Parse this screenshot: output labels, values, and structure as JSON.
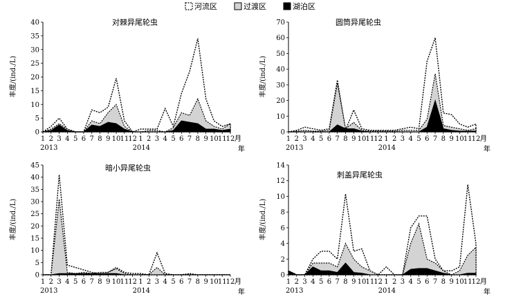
{
  "legend": {
    "river": "河流区",
    "transition": "过渡区",
    "lake": "湖泊区"
  },
  "colors": {
    "river": "#ffffff",
    "transition": "#d3d3d3",
    "lake": "#000000",
    "line": "#000000"
  },
  "x_axis": {
    "tick_labels": [
      "1",
      "2",
      "3",
      "4",
      "5",
      "6",
      "7",
      "8",
      "9",
      "10",
      "11",
      "12",
      "1",
      "2",
      "3",
      "4",
      "5",
      "6",
      "7",
      "8",
      "9",
      "10",
      "11",
      "12"
    ],
    "year_2013": "2013",
    "year_2014": "2014",
    "unit_month": "月",
    "unit_year": "年"
  },
  "chart_data": [
    {
      "type": "area",
      "title": "对棘异尾轮虫",
      "ylabel": "丰度/(ind./L)",
      "ylim": [
        0,
        40
      ],
      "yticks": [
        "0",
        "5",
        "10",
        "15",
        "20",
        "25",
        "30",
        "35",
        "40"
      ],
      "series": [
        {
          "name": "河流区",
          "values": [
            0,
            2,
            5,
            1,
            0,
            0,
            8,
            7,
            9,
            19.5,
            4,
            0,
            1,
            1,
            1,
            8.5,
            2,
            14,
            22,
            34,
            12,
            4,
            2,
            3
          ]
        },
        {
          "name": "过渡区",
          "values": [
            0,
            1,
            3,
            1,
            0,
            0,
            4,
            3,
            7,
            10,
            2,
            0,
            0,
            0.5,
            0.5,
            0,
            1.5,
            7,
            6,
            12,
            4,
            2,
            1,
            3
          ]
        },
        {
          "name": "湖泊区",
          "values": [
            0,
            0.5,
            2.5,
            0.5,
            0,
            0,
            2.5,
            2,
            3.5,
            3,
            1,
            0,
            0,
            0,
            0,
            0,
            0.5,
            4,
            3.5,
            3,
            1,
            1,
            0.5,
            1
          ]
        }
      ]
    },
    {
      "type": "area",
      "title": "圆筒异尾轮虫",
      "ylabel": "丰度/(ind./L)",
      "ylim": [
        0,
        70
      ],
      "yticks": [
        "0",
        "10",
        "20",
        "30",
        "40",
        "50",
        "60",
        "70"
      ],
      "series": [
        {
          "name": "河流区",
          "values": [
            0,
            1,
            3,
            2,
            1,
            2,
            33,
            1,
            14,
            2,
            1,
            1,
            1,
            1,
            2,
            3,
            2,
            45,
            60,
            12,
            11,
            5,
            3,
            5
          ]
        },
        {
          "name": "过渡区",
          "values": [
            0,
            0.5,
            1,
            0.5,
            0.5,
            1,
            31,
            2,
            6,
            1,
            0.5,
            0.5,
            0.5,
            0.5,
            1,
            1,
            1,
            8,
            37,
            4,
            3,
            2,
            1,
            2
          ]
        },
        {
          "name": "湖泊区",
          "values": [
            0,
            0,
            0,
            0,
            0,
            0,
            4.5,
            2,
            2,
            0.5,
            0,
            0,
            0,
            0,
            0,
            0,
            0,
            3,
            20,
            2,
            1,
            0.5,
            0.5,
            0.5
          ]
        }
      ]
    },
    {
      "type": "area",
      "title": "暗小异尾轮虫",
      "ylabel": "丰度/(ind./L)",
      "ylim": [
        0,
        45
      ],
      "yticks": [
        "0",
        "5",
        "10",
        "15",
        "20",
        "25",
        "30",
        "35",
        "40",
        "45"
      ],
      "series": [
        {
          "name": "河流区",
          "values": [
            0,
            0,
            41,
            4,
            3,
            2,
            1,
            0.5,
            1,
            3,
            1,
            0.5,
            0.5,
            0,
            9,
            0.5,
            0,
            0,
            0.5,
            0,
            0,
            0,
            0,
            0
          ]
        },
        {
          "name": "过渡区",
          "values": [
            0,
            0,
            31,
            1,
            0.5,
            1,
            0.5,
            1,
            1,
            2.5,
            0.5,
            0,
            0,
            0,
            3,
            0,
            0,
            0,
            0,
            0,
            0,
            0,
            0,
            0
          ]
        },
        {
          "name": "湖泊区",
          "values": [
            0,
            0,
            0.5,
            0.5,
            0.5,
            0.5,
            0.5,
            0.5,
            0.5,
            0.5,
            0,
            0,
            0,
            0,
            0,
            0,
            0,
            0,
            0,
            0,
            0,
            0,
            0,
            0
          ]
        }
      ]
    },
    {
      "type": "area",
      "title": "刺盖异尾轮虫",
      "ylabel": "丰度/(ind./L)",
      "ylim": [
        0,
        14
      ],
      "yticks": [
        "0",
        "2",
        "4",
        "6",
        "8",
        "10",
        "12",
        "14"
      ],
      "series": [
        {
          "name": "河流区",
          "values": [
            0.5,
            0,
            0,
            2,
            3,
            3,
            2,
            10.3,
            3,
            3.3,
            0.5,
            0,
            1,
            0,
            0,
            6,
            7.5,
            7.5,
            2,
            0.5,
            0.5,
            1,
            11.5,
            4
          ]
        },
        {
          "name": "过渡区",
          "values": [
            0.5,
            0,
            0,
            1.5,
            1.5,
            1.5,
            1,
            4,
            2,
            1,
            0.5,
            0,
            0,
            0,
            0,
            4,
            6.5,
            2,
            1.5,
            0.5,
            0,
            0.5,
            2.5,
            3.5
          ]
        },
        {
          "name": "湖泊区",
          "values": [
            0.5,
            0,
            0,
            1,
            0.5,
            0.5,
            0.3,
            1.5,
            0.3,
            0.2,
            0,
            0,
            0,
            0,
            0,
            0.7,
            0.8,
            0.8,
            0.5,
            0.2,
            0,
            0,
            0.2,
            0.2
          ]
        }
      ]
    }
  ]
}
